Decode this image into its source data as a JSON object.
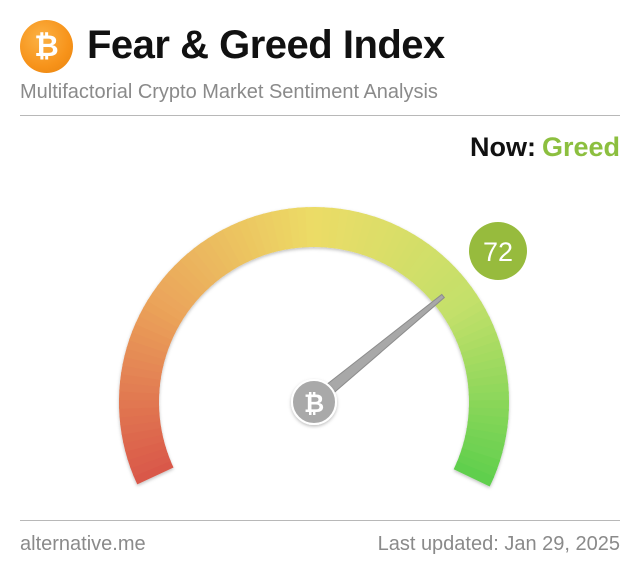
{
  "header": {
    "title": "Fear & Greed Index",
    "subtitle": "Multifactorial Crypto Market Sentiment Analysis",
    "logo_icon": "bitcoin-icon",
    "logo_glyph": "₿",
    "logo_color": "#f7931a"
  },
  "status": {
    "now_label": "Now:",
    "classification": "Greed",
    "classification_color": "#8cbf3f"
  },
  "gauge": {
    "value": 72,
    "value_text": "72",
    "min": 0,
    "max": 100,
    "badge_color": "#97bb3d",
    "colors": {
      "extreme_fear": "#d9564a",
      "fear": "#eba45a",
      "neutral": "#ecdc66",
      "greed": "#c3e06a",
      "extreme_greed": "#5fcf4d"
    },
    "needle_icon": "bitcoin-icon",
    "needle_glyph": "₿"
  },
  "footer": {
    "source": "alternative.me",
    "last_updated": "Last updated: Jan 29, 2025"
  }
}
